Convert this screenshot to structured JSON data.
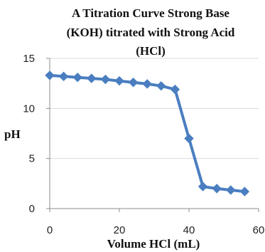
{
  "chart_data": {
    "type": "line",
    "title_lines": [
      "A Titration Curve Strong Base",
      "(KOH) titrated with Strong Acid",
      "(HCl)"
    ],
    "xlabel": "Volume HCl (mL)",
    "ylabel": "pH",
    "xlim": [
      0,
      60
    ],
    "ylim": [
      0,
      15
    ],
    "xticks": [
      0,
      20,
      40,
      60
    ],
    "yticks": [
      0,
      5,
      10,
      15
    ],
    "grid": "horizontal",
    "legend": "none",
    "series": [
      {
        "color": "#4A7EC0",
        "marker": "diamond",
        "x": [
          0,
          4,
          8,
          12,
          16,
          20,
          24,
          28,
          32,
          36,
          40,
          44,
          48,
          52,
          56
        ],
        "y": [
          13.3,
          13.2,
          13.1,
          13.0,
          12.9,
          12.75,
          12.6,
          12.45,
          12.25,
          11.9,
          7.0,
          2.2,
          2.0,
          1.85,
          1.7
        ]
      }
    ]
  }
}
